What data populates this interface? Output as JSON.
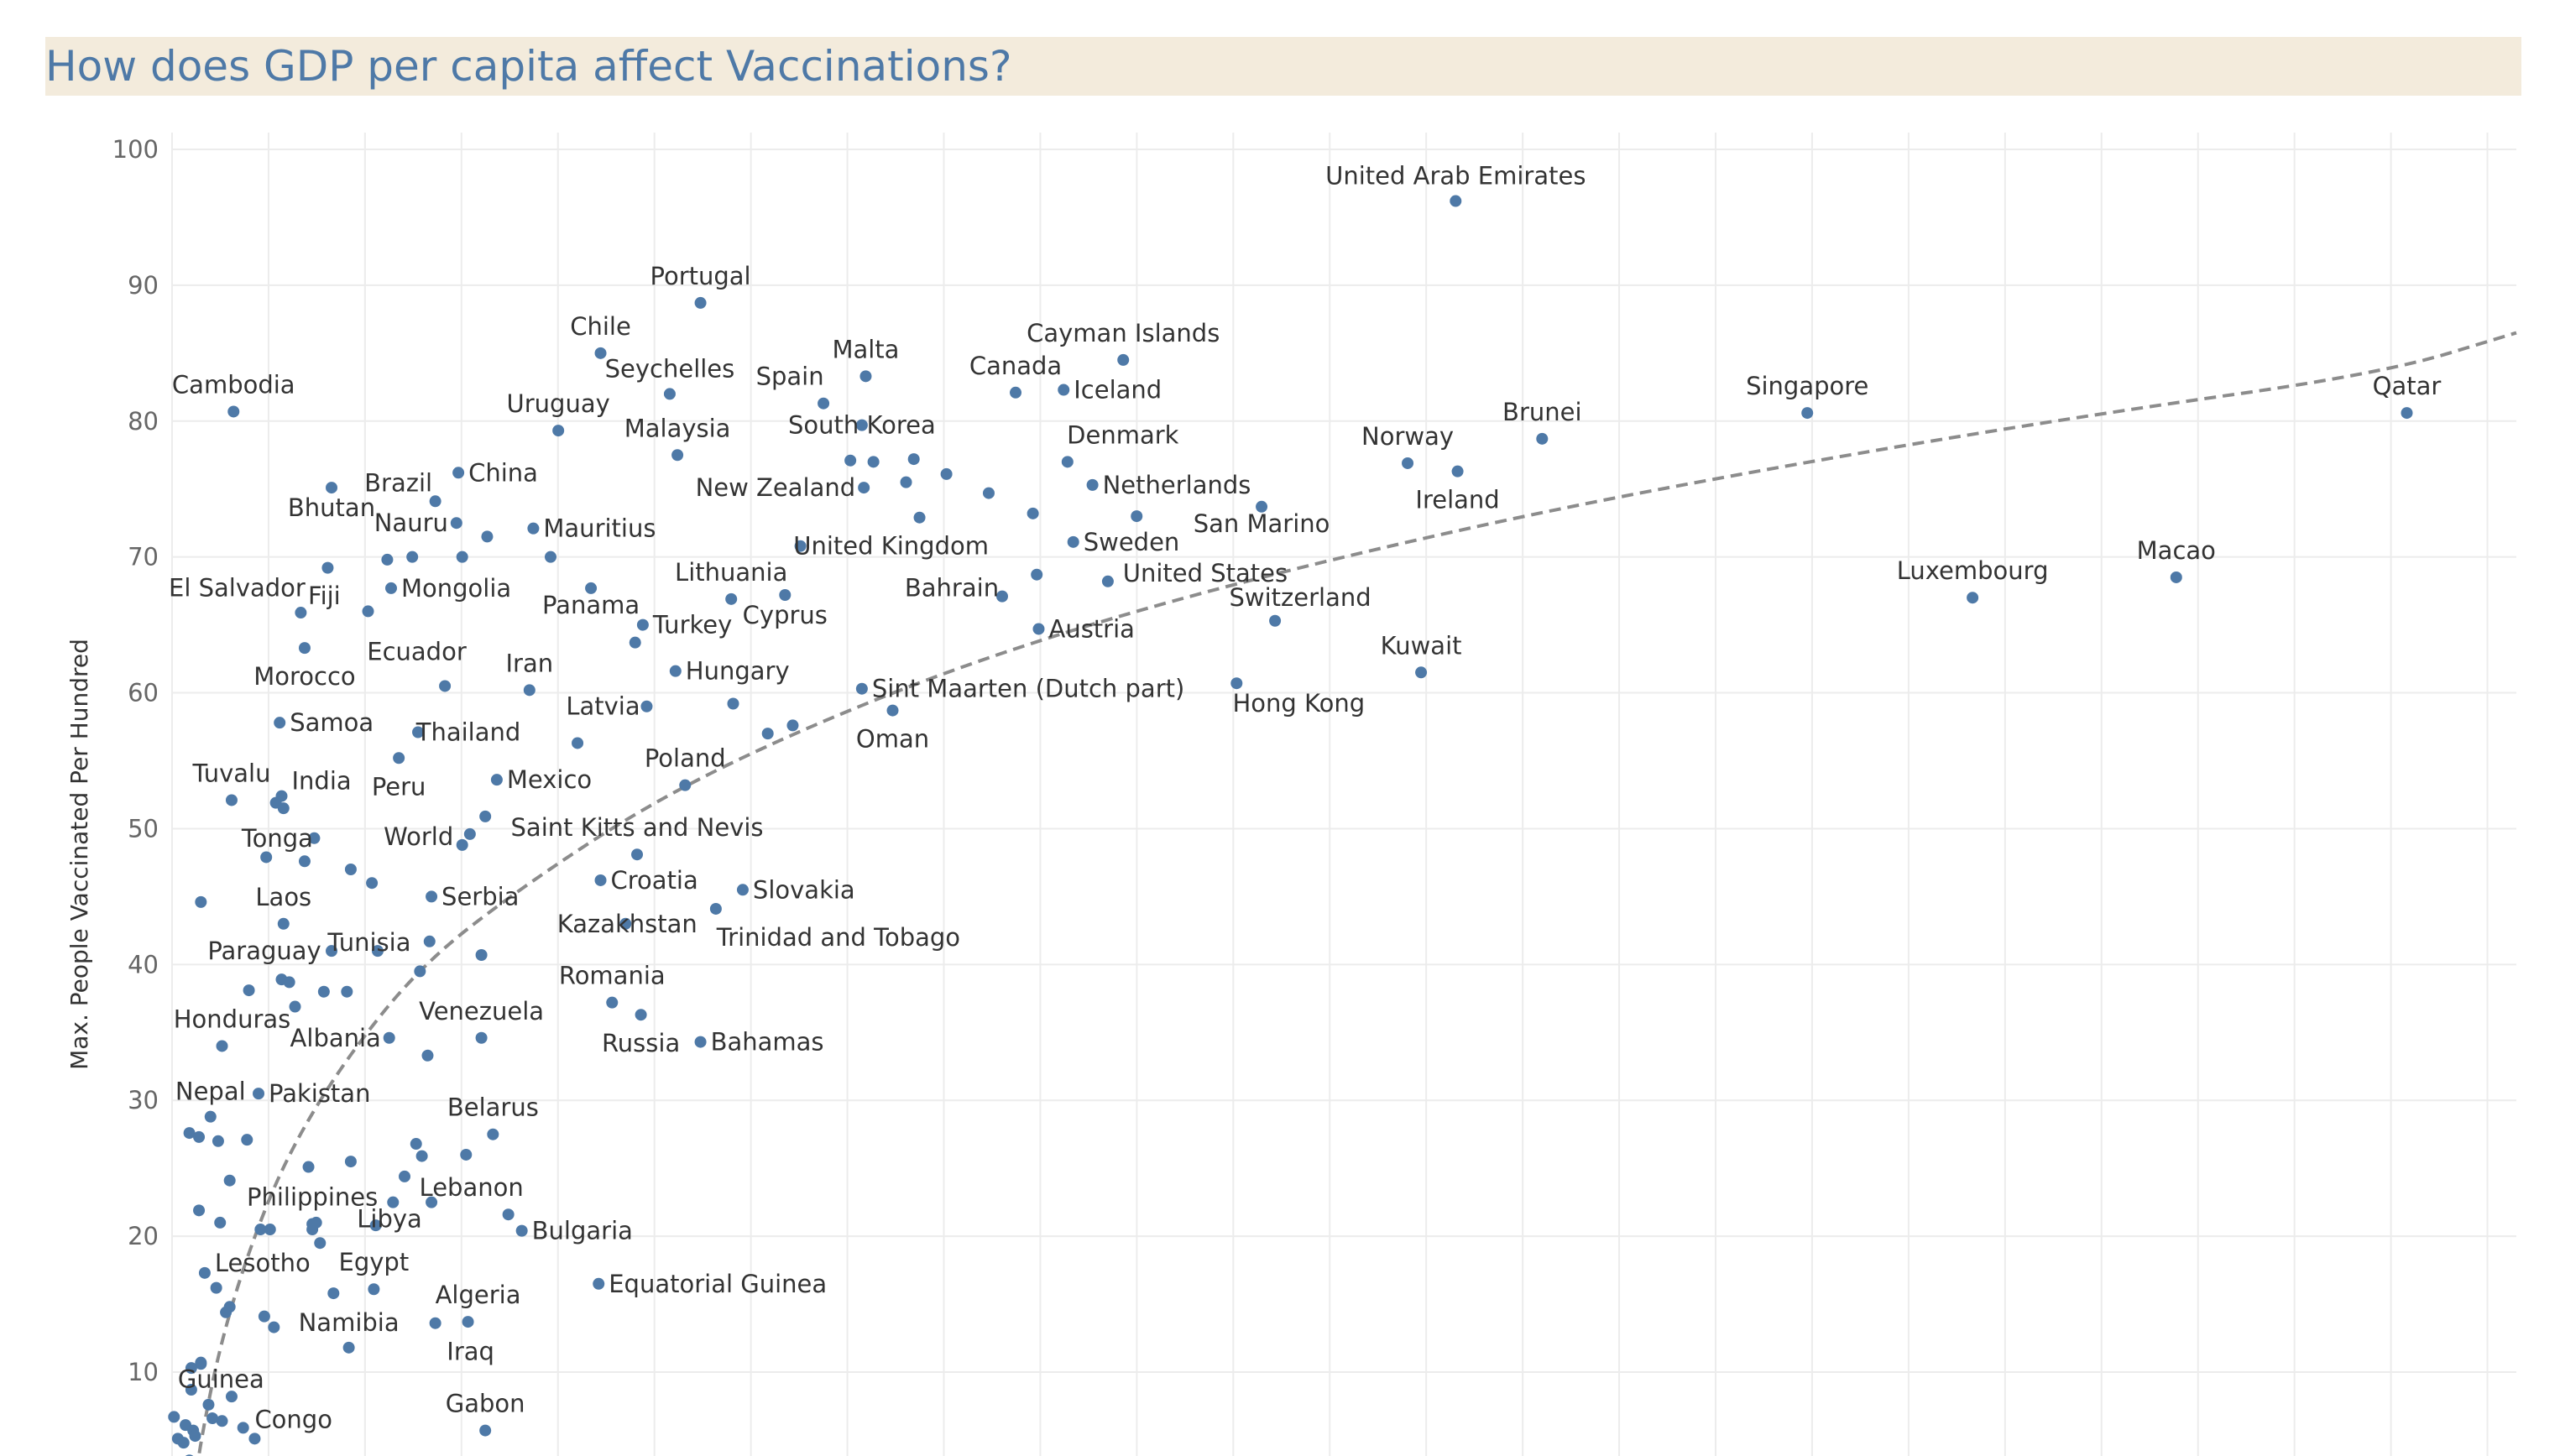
{
  "title": "How does GDP per capita affect Vaccinations?",
  "colors": {
    "title_band": "#f3ebdc",
    "title_text": "#4e79a7",
    "point": "#4e79a7",
    "trend": "#8c8c8c",
    "grid": "#ececec"
  },
  "chart_data": {
    "type": "scatter",
    "title": "How does GDP per capita affect Vaccinations?",
    "xlabel": "",
    "ylabel": "Max. People Vaccinated Per Hundred",
    "xlim": [
      0,
      122
    ],
    "ylim": [
      0,
      100
    ],
    "yticks": [
      10,
      20,
      30,
      40,
      50,
      60,
      70,
      80,
      90,
      100
    ],
    "grid": true,
    "trendline": {
      "type": "logarithmic",
      "points": [
        [
          1,
          0
        ],
        [
          1.5,
          5
        ],
        [
          2.5,
          12
        ],
        [
          4,
          19
        ],
        [
          6,
          26
        ],
        [
          9,
          33
        ],
        [
          13,
          40
        ],
        [
          18,
          45.5
        ],
        [
          25,
          52
        ],
        [
          33,
          57.5
        ],
        [
          43,
          63
        ],
        [
          55,
          68
        ],
        [
          70,
          73
        ],
        [
          85,
          77
        ],
        [
          100,
          80.5
        ],
        [
          115,
          83.5
        ],
        [
          122,
          86.5
        ]
      ]
    },
    "points": [
      {
        "label": "United Arab Emirates",
        "x": 66.8,
        "y": 96.2
      },
      {
        "label": "Portugal",
        "x": 27.5,
        "y": 88.7
      },
      {
        "label": "Chile",
        "x": 22.3,
        "y": 85
      },
      {
        "label": "Seychelles",
        "x": 25.9,
        "y": 82
      },
      {
        "label": "Malta",
        "x": 36.1,
        "y": 83.3
      },
      {
        "label": "Cayman Islands",
        "x": 49.5,
        "y": 84.5
      },
      {
        "label": "Iceland",
        "x": 46.4,
        "y": 82.3
      },
      {
        "label": "Cambodia",
        "x": 3.2,
        "y": 80.7
      },
      {
        "label": "Uruguay",
        "x": 20.1,
        "y": 79.3
      },
      {
        "label": "Spain",
        "x": 33.9,
        "y": 81.3
      },
      {
        "label": "South Korea",
        "x": 35.9,
        "y": 79.7
      },
      {
        "label": "Canada",
        "x": 43.9,
        "y": 82.1
      },
      {
        "label": "Singapore",
        "x": 85.1,
        "y": 80.6
      },
      {
        "label": "Qatar",
        "x": 116.3,
        "y": 80.6
      },
      {
        "label": "Brunei",
        "x": 71.3,
        "y": 78.7
      },
      {
        "label": "Malaysia",
        "x": 26.3,
        "y": 77.5
      },
      {
        "label": "Denmark",
        "x": 46.6,
        "y": 77
      },
      {
        "label": "Norway",
        "x": 64.3,
        "y": 76.9
      },
      {
        "label": "Ireland",
        "x": 66.9,
        "y": 76.3
      },
      {
        "label": "China",
        "x": 14.9,
        "y": 76.2
      },
      {
        "label": "Brazil",
        "x": 13.7,
        "y": 74.1
      },
      {
        "label": "New Zealand",
        "x": 36,
        "y": 75.1
      },
      {
        "label": "Netherlands",
        "x": 47.9,
        "y": 75.3
      },
      {
        "label": "Bhutan",
        "x": 8.3,
        "y": 75.1
      },
      {
        "label": "Nauru",
        "x": 14.8,
        "y": 72.5
      },
      {
        "label": "Mauritius",
        "x": 18.8,
        "y": 72.1
      },
      {
        "label": "San Marino",
        "x": 56.7,
        "y": 73.7
      },
      {
        "label": "United Kingdom",
        "x": 32.7,
        "y": 70.8
      },
      {
        "label": "Sweden",
        "x": 46.9,
        "y": 71.1
      },
      {
        "label": "El Salvador",
        "x": 8.1,
        "y": 69.2
      },
      {
        "label": "Luxembourg",
        "x": 93.7,
        "y": 67
      },
      {
        "label": "Macao",
        "x": 104.3,
        "y": 68.5
      },
      {
        "label": "Mongolia",
        "x": 11.4,
        "y": 67.7
      },
      {
        "label": "Lithuania",
        "x": 29.1,
        "y": 66.9
      },
      {
        "label": "Bahrain",
        "x": 43.2,
        "y": 67.1
      },
      {
        "label": "United States",
        "x": 48.7,
        "y": 68.2
      },
      {
        "label": "Fiji",
        "x": 6.7,
        "y": 65.9
      },
      {
        "label": "Panama",
        "x": 21.8,
        "y": 67.7
      },
      {
        "label": "Cyprus",
        "x": 31.9,
        "y": 67.2
      },
      {
        "label": "Turkey",
        "x": 24.5,
        "y": 65
      },
      {
        "label": "Austria",
        "x": 45.1,
        "y": 64.7
      },
      {
        "label": "Ecuador",
        "x": 10.2,
        "y": 66
      },
      {
        "label": "Switzerland",
        "x": 57.4,
        "y": 65.3
      },
      {
        "label": "Morocco",
        "x": 6.9,
        "y": 63.3
      },
      {
        "label": "Hungary",
        "x": 26.2,
        "y": 61.6
      },
      {
        "label": "Kuwait",
        "x": 65,
        "y": 61.5
      },
      {
        "label": "Iran",
        "x": 18.6,
        "y": 60.2
      },
      {
        "label": "Sint Maarten (Dutch part)",
        "x": 35.9,
        "y": 60.3
      },
      {
        "label": "Hong Kong",
        "x": 55.4,
        "y": 60.7
      },
      {
        "label": "Latvia",
        "x": 24.7,
        "y": 59
      },
      {
        "label": "Oman",
        "x": 37.5,
        "y": 58.7
      },
      {
        "label": "Samoa",
        "x": 5.6,
        "y": 57.8
      },
      {
        "label": "Thailand",
        "x": 12.8,
        "y": 57.1
      },
      {
        "label": "Tuvalu",
        "x": 3.1,
        "y": 52.1
      },
      {
        "label": "India",
        "x": 5.7,
        "y": 52.4
      },
      {
        "label": "Peru",
        "x": 11.8,
        "y": 55.2
      },
      {
        "label": "Mexico",
        "x": 16.9,
        "y": 53.6
      },
      {
        "label": "Poland",
        "x": 26.7,
        "y": 53.2
      },
      {
        "label": "Tonga",
        "x": 7.4,
        "y": 49.3
      },
      {
        "label": "World",
        "x": 15.1,
        "y": 48.8
      },
      {
        "label": "Saint Kitts and Nevis",
        "x": 24.2,
        "y": 48.1
      },
      {
        "label": "Croatia",
        "x": 22.3,
        "y": 46.2
      },
      {
        "label": "Slovakia",
        "x": 29.7,
        "y": 45.5
      },
      {
        "label": "Serbia",
        "x": 13.5,
        "y": 45
      },
      {
        "label": "Laos",
        "x": 5.8,
        "y": 43
      },
      {
        "label": "Kazakhstan",
        "x": 23.6,
        "y": 43
      },
      {
        "label": "Trinidad and Tobago",
        "x": 28.3,
        "y": 44.1
      },
      {
        "label": "Tunisia",
        "x": 10.7,
        "y": 41
      },
      {
        "label": "Paraguay",
        "x": 8.3,
        "y": 41
      },
      {
        "label": "Romania",
        "x": 22.9,
        "y": 37.2
      },
      {
        "label": "Russia",
        "x": 24.4,
        "y": 36.3
      },
      {
        "label": "Bahamas",
        "x": 27.5,
        "y": 34.3
      },
      {
        "label": "Honduras",
        "x": 2.6,
        "y": 34
      },
      {
        "label": "Albania",
        "x": 11.3,
        "y": 34.6
      },
      {
        "label": "Venezuela",
        "x": 16.1,
        "y": 34.6
      },
      {
        "label": "Nepal",
        "x": 2,
        "y": 28.8
      },
      {
        "label": "Pakistan",
        "x": 4.5,
        "y": 30.5
      },
      {
        "label": "Belarus",
        "x": 16.7,
        "y": 27.5
      },
      {
        "label": "Lebanon",
        "x": 17.5,
        "y": 21.6
      },
      {
        "label": "Philippines",
        "x": 7.3,
        "y": 20.9
      },
      {
        "label": "Bulgaria",
        "x": 18.2,
        "y": 20.4
      },
      {
        "label": "Libya",
        "x": 13.5,
        "y": 22.5
      },
      {
        "label": "Lesotho",
        "x": 1.7,
        "y": 17.3
      },
      {
        "label": "Egypt",
        "x": 10.5,
        "y": 16.1
      },
      {
        "label": "Equatorial Guinea",
        "x": 22.2,
        "y": 16.5
      },
      {
        "label": "Namibia",
        "x": 9.2,
        "y": 11.8
      },
      {
        "label": "Algeria",
        "x": 15.4,
        "y": 13.7
      },
      {
        "label": "Iraq",
        "x": 13.7,
        "y": 13.6
      },
      {
        "label": "Guinea",
        "x": 1.5,
        "y": 10.7
      },
      {
        "label": "Congo",
        "x": 3.7,
        "y": 5.9
      },
      {
        "label": "Gabon",
        "x": 16.3,
        "y": 5.7
      },
      {
        "label": "",
        "x": 16.4,
        "y": 71.5
      },
      {
        "label": "",
        "x": 15.1,
        "y": 70
      },
      {
        "label": "",
        "x": 12.5,
        "y": 70
      },
      {
        "label": "",
        "x": 11.2,
        "y": 69.8
      },
      {
        "label": "",
        "x": 19.7,
        "y": 70
      },
      {
        "label": "",
        "x": 35.3,
        "y": 77.1
      },
      {
        "label": "",
        "x": 36.5,
        "y": 77
      },
      {
        "label": "",
        "x": 38.6,
        "y": 77.2
      },
      {
        "label": "",
        "x": 40.3,
        "y": 76.1
      },
      {
        "label": "",
        "x": 38.2,
        "y": 75.5
      },
      {
        "label": "",
        "x": 42.5,
        "y": 74.7
      },
      {
        "label": "",
        "x": 38.9,
        "y": 72.9
      },
      {
        "label": "",
        "x": 44.8,
        "y": 73.2
      },
      {
        "label": "",
        "x": 45,
        "y": 68.7
      },
      {
        "label": "",
        "x": 50.2,
        "y": 73
      },
      {
        "label": "",
        "x": 24.1,
        "y": 63.7
      },
      {
        "label": "",
        "x": 14.2,
        "y": 60.5
      },
      {
        "label": "",
        "x": 29.2,
        "y": 59.2
      },
      {
        "label": "",
        "x": 31,
        "y": 57
      },
      {
        "label": "",
        "x": 32.3,
        "y": 57.6
      },
      {
        "label": "",
        "x": 21.1,
        "y": 56.3
      },
      {
        "label": "",
        "x": 5.4,
        "y": 51.9
      },
      {
        "label": "",
        "x": 5.8,
        "y": 51.5
      },
      {
        "label": "",
        "x": 16.3,
        "y": 50.9
      },
      {
        "label": "",
        "x": 15.5,
        "y": 49.6
      },
      {
        "label": "",
        "x": 4.9,
        "y": 47.9
      },
      {
        "label": "",
        "x": 6.9,
        "y": 47.6
      },
      {
        "label": "",
        "x": 9.3,
        "y": 47
      },
      {
        "label": "",
        "x": 10.4,
        "y": 46
      },
      {
        "label": "",
        "x": 1.5,
        "y": 44.6
      },
      {
        "label": "",
        "x": 13.4,
        "y": 41.7
      },
      {
        "label": "",
        "x": 16.1,
        "y": 40.7
      },
      {
        "label": "",
        "x": 12.9,
        "y": 39.5
      },
      {
        "label": "",
        "x": 5.7,
        "y": 38.9
      },
      {
        "label": "",
        "x": 6.1,
        "y": 38.7
      },
      {
        "label": "",
        "x": 4,
        "y": 38.1
      },
      {
        "label": "",
        "x": 7.9,
        "y": 38
      },
      {
        "label": "",
        "x": 9.1,
        "y": 38
      },
      {
        "label": "",
        "x": 6.4,
        "y": 36.9
      },
      {
        "label": "",
        "x": 13.3,
        "y": 33.3
      },
      {
        "label": "",
        "x": 0.9,
        "y": 27.6
      },
      {
        "label": "",
        "x": 1.4,
        "y": 27.3
      },
      {
        "label": "",
        "x": 2.4,
        "y": 27
      },
      {
        "label": "",
        "x": 3.9,
        "y": 27.1
      },
      {
        "label": "",
        "x": 12.7,
        "y": 26.8
      },
      {
        "label": "",
        "x": 13,
        "y": 25.9
      },
      {
        "label": "",
        "x": 15.3,
        "y": 26
      },
      {
        "label": "",
        "x": 7.1,
        "y": 25.1
      },
      {
        "label": "",
        "x": 9.3,
        "y": 25.5
      },
      {
        "label": "",
        "x": 12.1,
        "y": 24.4
      },
      {
        "label": "",
        "x": 3,
        "y": 24.1
      },
      {
        "label": "",
        "x": 11.5,
        "y": 22.5
      },
      {
        "label": "",
        "x": 1.4,
        "y": 21.9
      },
      {
        "label": "",
        "x": 2.5,
        "y": 21
      },
      {
        "label": "",
        "x": 7.5,
        "y": 21
      },
      {
        "label": "",
        "x": 4.6,
        "y": 20.5
      },
      {
        "label": "",
        "x": 5.1,
        "y": 20.5
      },
      {
        "label": "",
        "x": 7.3,
        "y": 20.5
      },
      {
        "label": "",
        "x": 10.6,
        "y": 20.8
      },
      {
        "label": "",
        "x": 7.7,
        "y": 19.5
      },
      {
        "label": "",
        "x": 2.3,
        "y": 16.2
      },
      {
        "label": "",
        "x": 8.4,
        "y": 15.8
      },
      {
        "label": "",
        "x": 3,
        "y": 14.8
      },
      {
        "label": "",
        "x": 2.8,
        "y": 14.4
      },
      {
        "label": "",
        "x": 4.8,
        "y": 14.1
      },
      {
        "label": "",
        "x": 5.3,
        "y": 13.3
      },
      {
        "label": "",
        "x": 1.5,
        "y": 10.6
      },
      {
        "label": "",
        "x": 1,
        "y": 10.3
      },
      {
        "label": "",
        "x": 1,
        "y": 8.7
      },
      {
        "label": "",
        "x": 3.1,
        "y": 8.2
      },
      {
        "label": "",
        "x": 1.9,
        "y": 7.6
      },
      {
        "label": "",
        "x": 2.1,
        "y": 6.6
      },
      {
        "label": "",
        "x": 2.6,
        "y": 6.4
      },
      {
        "label": "",
        "x": 0.1,
        "y": 6.7
      },
      {
        "label": "",
        "x": 0.7,
        "y": 6.1
      },
      {
        "label": "",
        "x": 1.1,
        "y": 5.7
      },
      {
        "label": "",
        "x": 1.2,
        "y": 5.3
      },
      {
        "label": "",
        "x": 4.3,
        "y": 5.1
      },
      {
        "label": "",
        "x": 0.3,
        "y": 5.1
      },
      {
        "label": "",
        "x": 0.6,
        "y": 4.8
      },
      {
        "label": "",
        "x": 0.9,
        "y": 3.5
      }
    ]
  }
}
